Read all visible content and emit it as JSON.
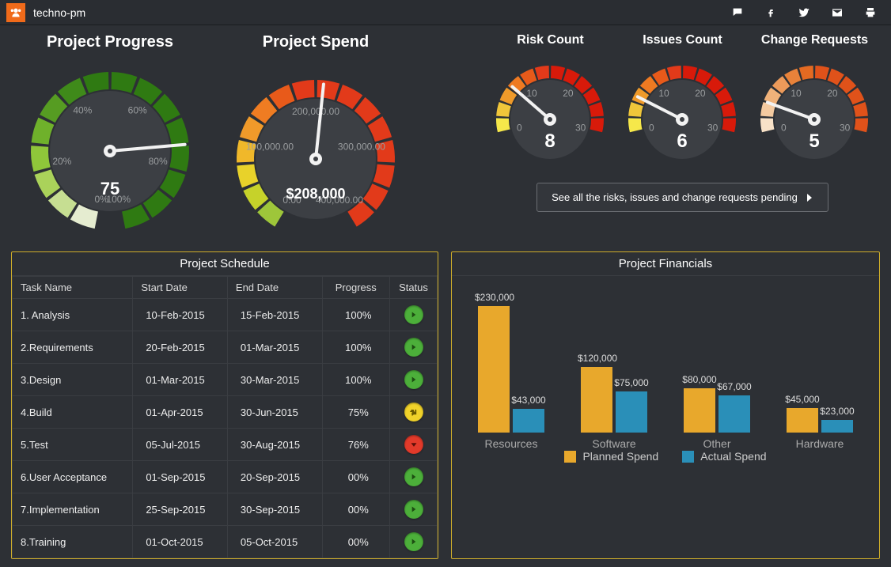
{
  "header": {
    "brand": "techno-pm"
  },
  "palette": {
    "bg": "#2d3035",
    "panel_border": "#cfae2a",
    "grid": "#3a3d42",
    "planned": "#e8a82c",
    "actual": "#2a8fb8",
    "status_green": "#4caf3a",
    "status_yellow": "#f0d22a",
    "status_red": "#e23a2a"
  },
  "gauges": {
    "progress": {
      "title": "Project Progress",
      "value": 75,
      "display": "75",
      "ticks": [
        "0%",
        "20%",
        "40%",
        "60%",
        "80%",
        "100%"
      ],
      "segment_colors": [
        "#e5ecd0",
        "#c6de92",
        "#aad25a",
        "#8fc63a",
        "#6fb12b",
        "#569c22",
        "#3f8a1a",
        "#2f7a12"
      ]
    },
    "spend": {
      "title": "Project Spend",
      "value": 208000,
      "max": 400000,
      "display": "$208,000",
      "ticks": [
        "0.00",
        "100,000.00",
        "200,000.00",
        "300,000.00",
        "400,000.00"
      ],
      "segment_colors": [
        "#9ec63a",
        "#c6d22a",
        "#e8d22a",
        "#f0b82a",
        "#f09a2a",
        "#ef7c22",
        "#e85a1a",
        "#e23a1a"
      ]
    },
    "risk": {
      "title": "Risk Count",
      "value": 8,
      "display": "8",
      "ticks": [
        "0",
        "10",
        "20",
        "30"
      ],
      "segment_colors": [
        "#f6e84a",
        "#f0c63a",
        "#ef9a2a",
        "#ef7a22",
        "#e85a1a",
        "#e23a1a",
        "#d81a0a"
      ]
    },
    "issues": {
      "title": "Issues Count",
      "value": 6,
      "display": "6",
      "ticks": [
        "0",
        "10",
        "20",
        "30"
      ],
      "segment_colors": [
        "#f6e84a",
        "#f0c63a",
        "#ef9a2a",
        "#ef7a22",
        "#e85a1a",
        "#e23a1a",
        "#d81a0a"
      ]
    },
    "change": {
      "title": "Change Requests",
      "value": 5,
      "display": "5",
      "ticks": [
        "0",
        "10",
        "20",
        "30"
      ],
      "segment_colors": [
        "#f8e2c8",
        "#f4caa0",
        "#f0b27a",
        "#ec9a5a",
        "#e8823a",
        "#e46a22",
        "#e0521a"
      ]
    }
  },
  "link_text": "See all the risks, issues and change requests pending",
  "schedule": {
    "title": "Project Schedule",
    "columns": [
      "Task Name",
      "Start Date",
      "End Date",
      "Progress",
      "Status"
    ],
    "rows": [
      {
        "task": "1. Analysis",
        "start": "10-Feb-2015",
        "end": "15-Feb-2015",
        "progress": "100%",
        "status": "green"
      },
      {
        "task": "2.Requirements",
        "start": "20-Feb-2015",
        "end": "01-Mar-2015",
        "progress": "100%",
        "status": "green"
      },
      {
        "task": "3.Design",
        "start": "01-Mar-2015",
        "end": "30-Mar-2015",
        "progress": "100%",
        "status": "green"
      },
      {
        "task": "4.Build",
        "start": "01-Apr-2015",
        "end": "30-Jun-2015",
        "progress": "75%",
        "status": "yellow"
      },
      {
        "task": "5.Test",
        "start": "05-Jul-2015",
        "end": "30-Aug-2015",
        "progress": "76%",
        "status": "red"
      },
      {
        "task": "6.User Acceptance",
        "start": "01-Sep-2015",
        "end": "20-Sep-2015",
        "progress": "00%",
        "status": "green"
      },
      {
        "task": "7.Implementation",
        "start": "25-Sep-2015",
        "end": "30-Sep-2015",
        "progress": "00%",
        "status": "green"
      },
      {
        "task": "8.Training",
        "start": "01-Oct-2015",
        "end": "05-Oct-2015",
        "progress": "00%",
        "status": "green"
      }
    ]
  },
  "financials": {
    "title": "Project Financials",
    "legend": {
      "planned": "Planned Spend",
      "actual": "Actual Spend"
    },
    "ylim": [
      0,
      230000
    ],
    "categories": [
      "Resources",
      "Software",
      "Other",
      "Hardware"
    ],
    "planned": [
      230000,
      120000,
      80000,
      45000
    ],
    "actual": [
      43000,
      75000,
      67000,
      23000
    ],
    "planned_labels": [
      "$230,000",
      "$120,000",
      "$80,000",
      "$45,000"
    ],
    "actual_labels": [
      "$43,000",
      "$75,000",
      "$67,000",
      "$23,000"
    ]
  }
}
